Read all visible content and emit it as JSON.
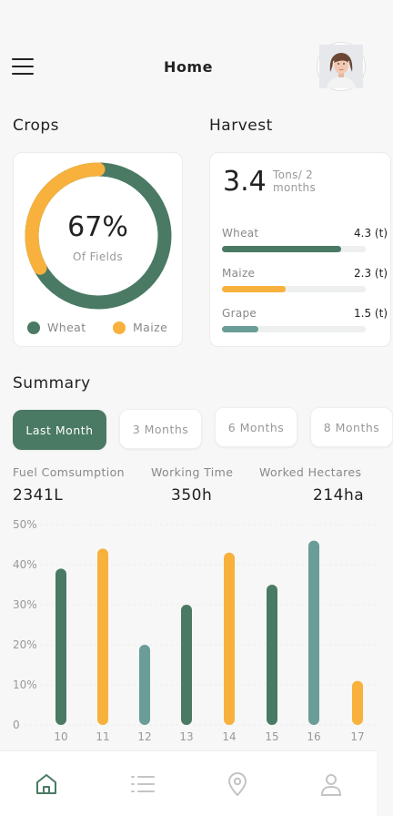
{
  "header": {
    "title": "Home"
  },
  "crops": {
    "title": "Crops",
    "percent_label": "67%",
    "percent_value": 0.67,
    "sub_label": "Of Fields",
    "legend": [
      {
        "label": "Wheat",
        "color": "#4a7a64"
      },
      {
        "label": "Maize",
        "color": "#f7b13c"
      }
    ]
  },
  "harvest": {
    "title": "Harvest",
    "total": "3.4",
    "unit": "Tons/ 2 months",
    "items": [
      {
        "label": "Wheat",
        "value": "4.3 (t)",
        "fraction": 0.83,
        "color": "#4a7a64"
      },
      {
        "label": "Maize",
        "value": "2.3 (t)",
        "fraction": 0.44,
        "color": "#f7b13c"
      },
      {
        "label": "Grape",
        "value": "1.5 (t)",
        "fraction": 0.25,
        "color": "#6a9d98"
      }
    ]
  },
  "summary": {
    "title": "Summary",
    "tabs": [
      {
        "label": "Last Month",
        "active": true
      },
      {
        "label": "3 Months",
        "active": false
      },
      {
        "label": "6 Months",
        "active": false
      },
      {
        "label": "8 Months",
        "active": false
      }
    ],
    "stats": [
      {
        "label": "Fuel Comsumption",
        "value": "2341L"
      },
      {
        "label": "Working Time",
        "value": "350h"
      },
      {
        "label": "Worked Hectares",
        "value": "214ha"
      }
    ]
  },
  "chart_data": {
    "type": "bar",
    "categories": [
      "10",
      "11",
      "12",
      "13",
      "14",
      "15",
      "16",
      "17"
    ],
    "values": [
      39,
      44,
      20,
      30,
      43,
      35,
      46,
      11
    ],
    "colors": [
      "#4a7a64",
      "#f7b13c",
      "#6a9d98",
      "#4a7a64",
      "#f7b13c",
      "#4a7a64",
      "#6a9d98",
      "#f7b13c"
    ],
    "yticks": [
      "0",
      "10%",
      "20%",
      "30%",
      "40%",
      "50%"
    ],
    "ylim": [
      0,
      50
    ],
    "grid": true,
    "title": "",
    "xlabel": "",
    "ylabel": ""
  },
  "bottom_nav": {
    "items": [
      "home-icon",
      "list-icon",
      "location-icon",
      "profile-icon"
    ],
    "active_color": "#4a7a64",
    "inactive_color": "#c4c4c4"
  }
}
